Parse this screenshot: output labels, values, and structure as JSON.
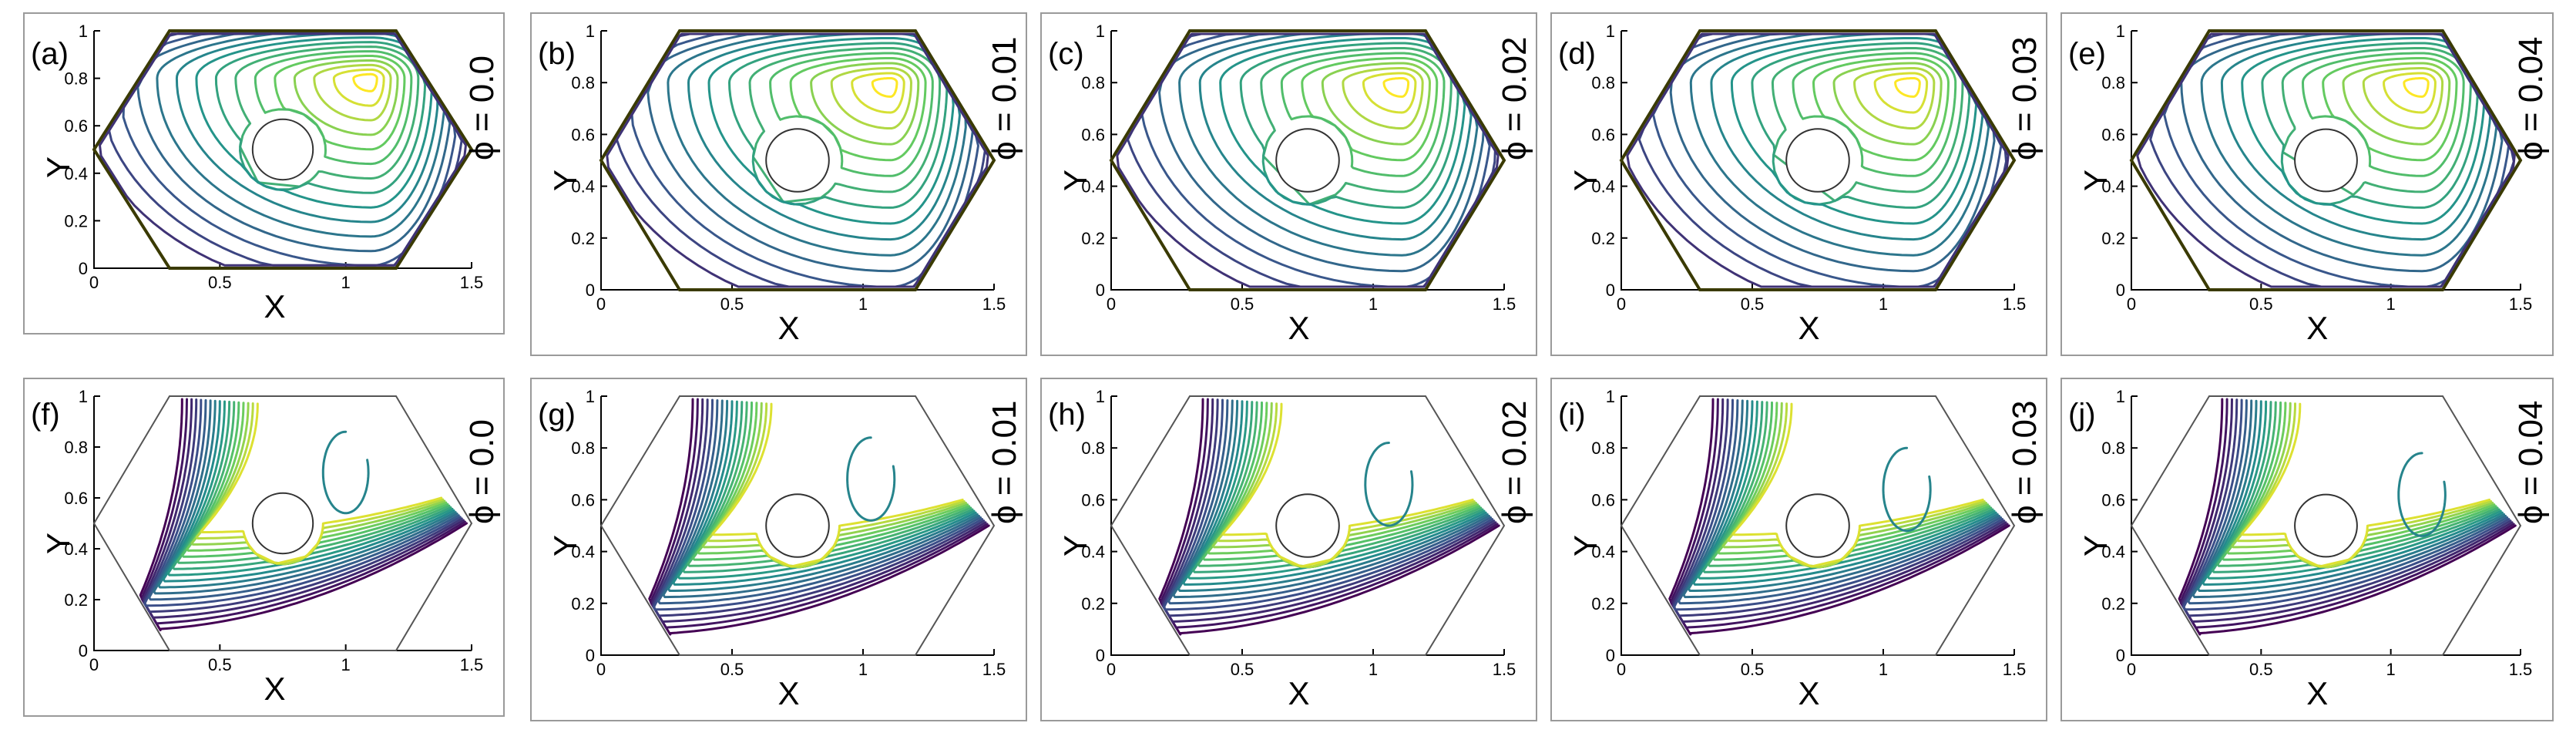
{
  "figure": {
    "axis": {
      "xlabel": "X",
      "ylabel": "Y",
      "xticks": [
        "0",
        "0.5",
        "1",
        "1.5"
      ],
      "yticks": [
        "0",
        "0.2",
        "0.4",
        "0.6",
        "0.8",
        "1"
      ]
    },
    "rows": [
      {
        "panels": [
          {
            "label": "(a)",
            "phi": "ϕ = 0.0"
          },
          {
            "label": "(b)",
            "phi": "ϕ = 0.01"
          },
          {
            "label": "(c)",
            "phi": "ϕ = 0.02"
          },
          {
            "label": "(d)",
            "phi": "ϕ = 0.03"
          },
          {
            "label": "(e)",
            "phi": "ϕ = 0.04"
          }
        ]
      },
      {
        "panels": [
          {
            "label": "(f)",
            "phi": "ϕ = 0.0"
          },
          {
            "label": "(g)",
            "phi": "ϕ = 0.01"
          },
          {
            "label": "(h)",
            "phi": "ϕ = 0.02"
          },
          {
            "label": "(i)",
            "phi": "ϕ = 0.03"
          },
          {
            "label": "(j)",
            "phi": "ϕ = 0.04"
          }
        ]
      }
    ],
    "colormap": [
      "#440154",
      "#3b528b",
      "#21918c",
      "#5ec962",
      "#fde725"
    ]
  }
}
